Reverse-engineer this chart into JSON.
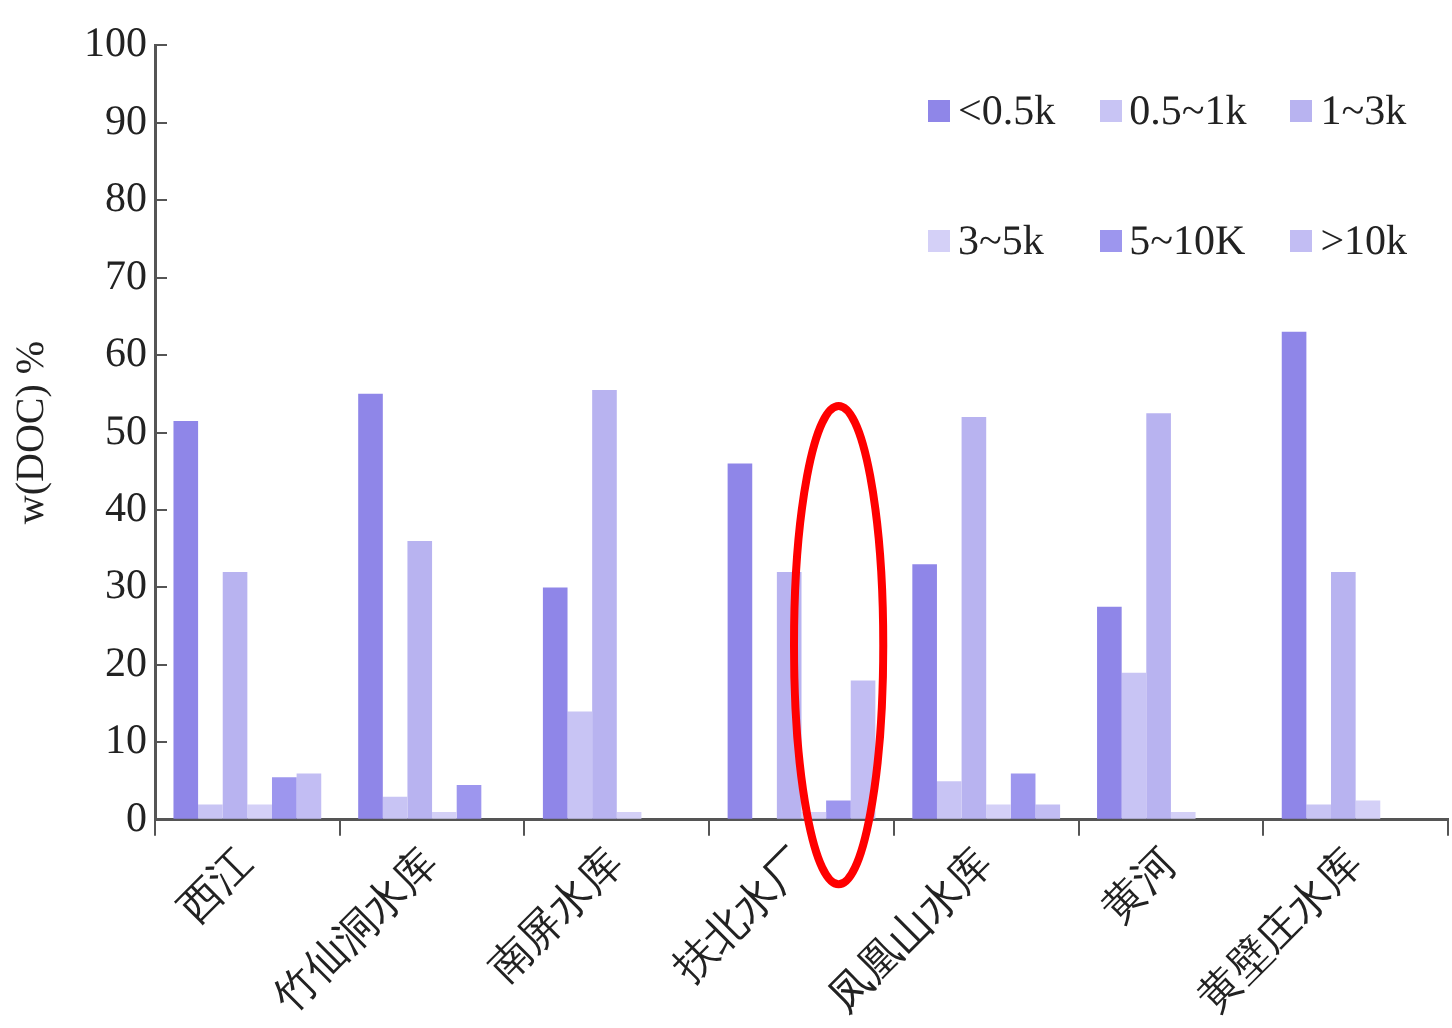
{
  "chart_data": {
    "type": "bar",
    "ylabel": "w(DOC) %",
    "categories": [
      "西江",
      "竹仙洞水库",
      "南屏水库",
      "扶北水厂",
      "凤凰山水库",
      "黄河",
      "黄壁庄水库"
    ],
    "series": [
      {
        "name": "<0.5k",
        "color": "#8f86e8",
        "values": [
          51.5,
          55,
          30,
          46,
          33,
          27.5,
          63
        ]
      },
      {
        "name": "0.5~1k",
        "color": "#c8c4f4",
        "values": [
          2,
          3,
          14,
          0,
          5,
          19,
          2
        ]
      },
      {
        "name": "1~3k",
        "color": "#b8b3f0",
        "values": [
          32,
          36,
          55.5,
          32,
          52,
          52.5,
          32
        ]
      },
      {
        "name": "3~5k",
        "color": "#d4d0f7",
        "values": [
          2,
          1,
          1,
          1,
          2,
          1,
          2.5
        ]
      },
      {
        "name": "5~10K",
        "color": "#9d96ee",
        "values": [
          5.5,
          4.5,
          0,
          2.5,
          6,
          0,
          0
        ]
      },
      {
        "name": ">10k",
        "color": "#c2bdf3",
        "values": [
          6,
          0,
          0,
          18,
          2,
          0,
          0
        ]
      }
    ],
    "ylim": [
      0,
      100
    ],
    "yticks": [
      0,
      10,
      20,
      30,
      40,
      50,
      60,
      70,
      80,
      90,
      100
    ],
    "grid": false,
    "legend": "top right"
  }
}
